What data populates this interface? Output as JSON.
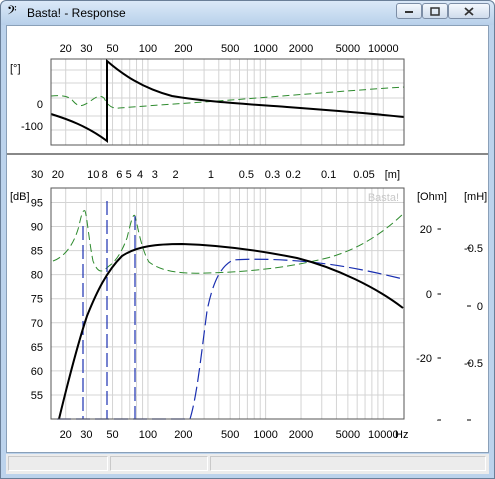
{
  "window": {
    "title": "Basta! - Response",
    "app_icon": "bass-clef-icon",
    "controls": [
      "minimize-icon",
      "maximize-icon",
      "close-icon"
    ]
  },
  "phase_plot": {
    "unit_label": "[°]",
    "freq_ticks": [
      "20",
      "30",
      "50",
      "100",
      "200",
      "500",
      "1000",
      "2000",
      "5000",
      "10000"
    ],
    "y_ticks": [
      "0",
      "-100"
    ]
  },
  "response_plot": {
    "watermark": "Basta!",
    "wavelength_unit": "[m]",
    "wavelength_ticks": [
      "30",
      "20",
      "10",
      "8",
      "6",
      "5",
      "4",
      "3",
      "2",
      "1",
      "0.5",
      "0.3",
      "0.2",
      "0.1",
      "0.05"
    ],
    "db_unit": "[dB]",
    "db_ticks": [
      "95",
      "90",
      "85",
      "80",
      "75",
      "70",
      "65",
      "60",
      "55"
    ],
    "ohm_unit": "[Ohm]",
    "ohm_ticks": [
      "20",
      "0",
      "-20"
    ],
    "mh_unit": "[mH]",
    "mh_ticks": [
      "-0.5",
      "0",
      "-0.5"
    ],
    "freq_ticks": [
      "20",
      "30",
      "50",
      "100",
      "200",
      "500",
      "1000",
      "2000",
      "5000",
      "10000"
    ],
    "freq_unit": "Hz"
  },
  "colors": {
    "spl_curve": "#000000",
    "impedance_curve": "#2e8b2e",
    "secondary_curve": "#1a2fb0",
    "grid": "#c0c0c0"
  }
}
